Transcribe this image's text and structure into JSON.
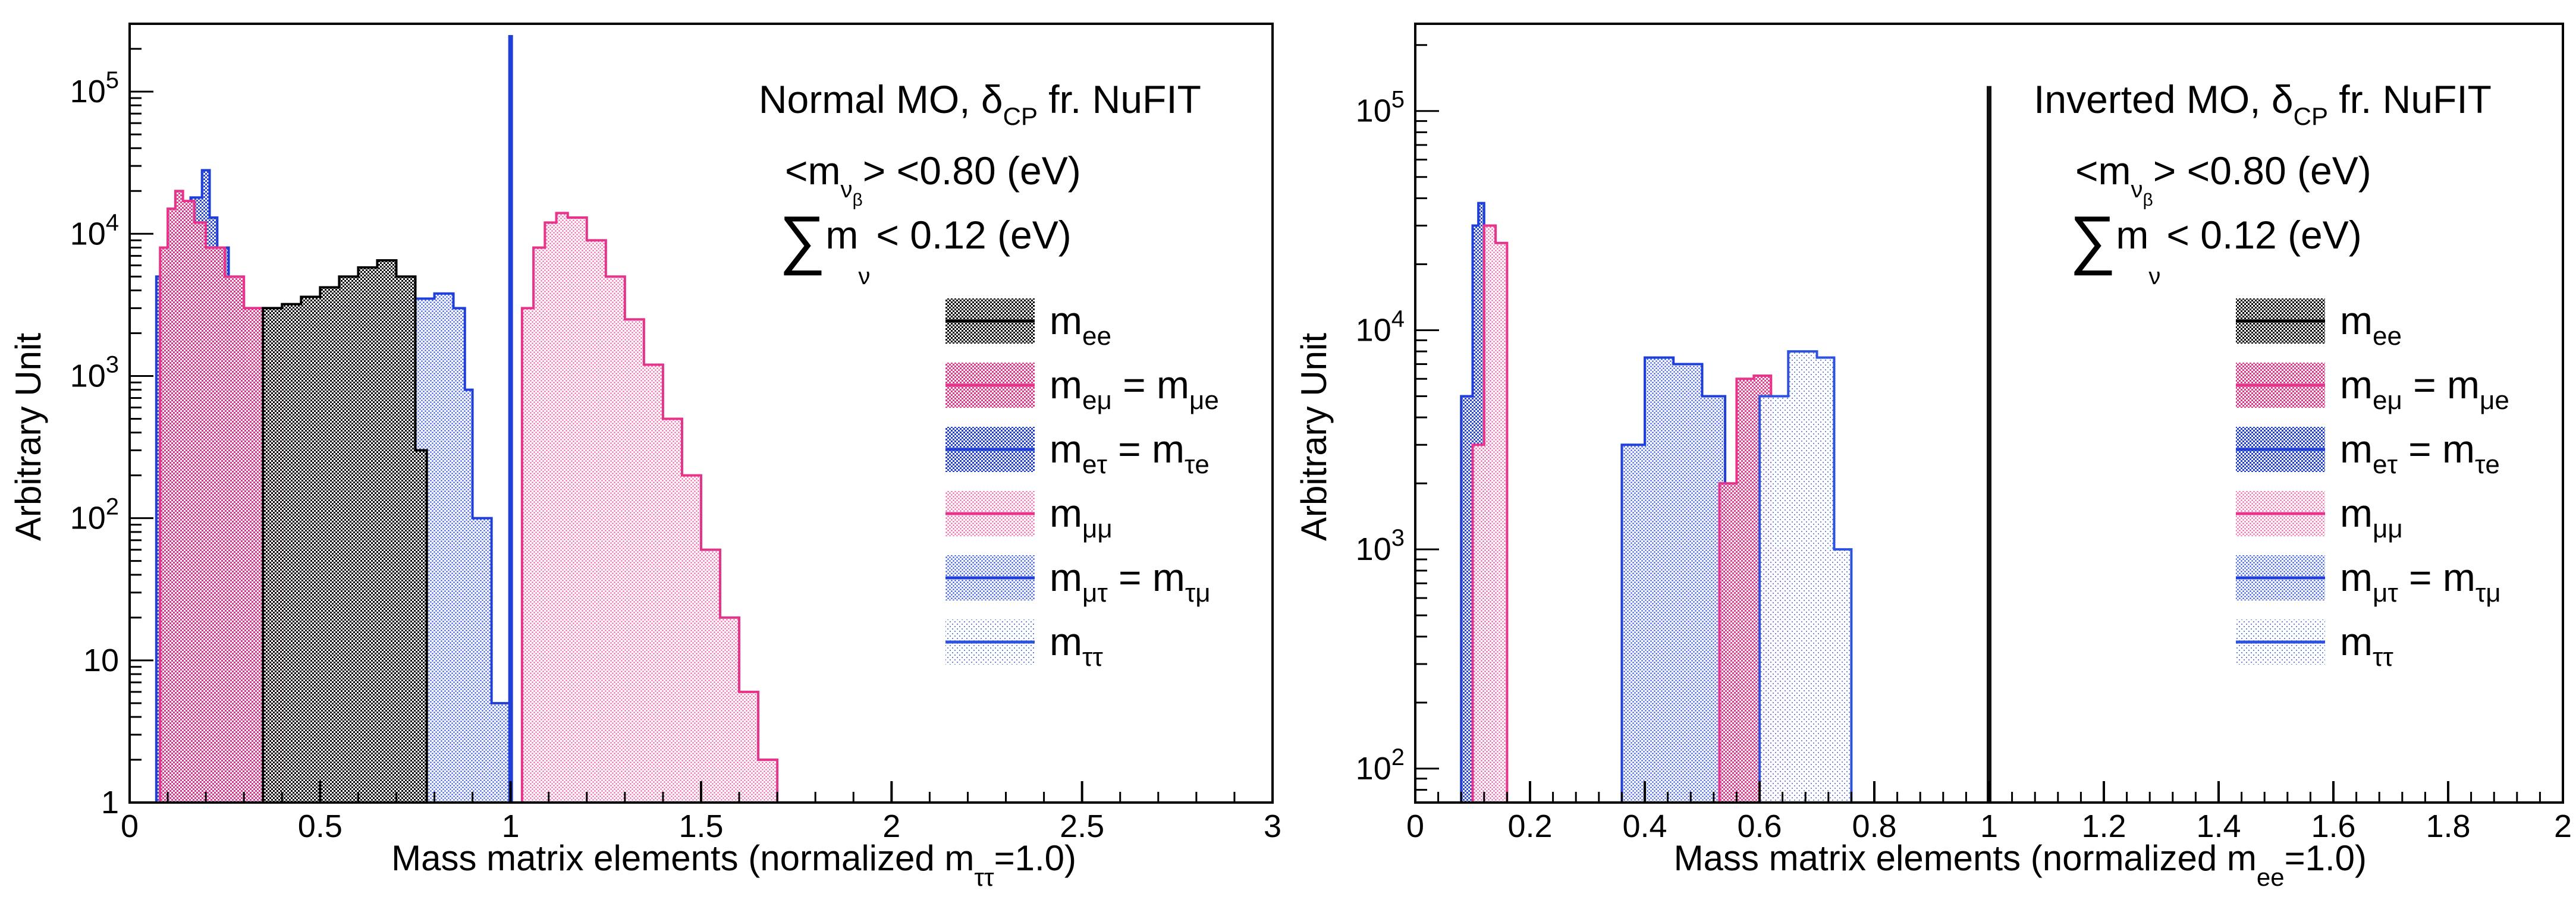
{
  "colors": {
    "mee": "#000000",
    "mem": "#e8338b",
    "met": "#1f3fd8",
    "mmm": "#ef5ea7",
    "mmt": "#2e52e0",
    "mtt": "#5577ee"
  },
  "chart_data": [
    {
      "type": "histogram",
      "panel": "left",
      "title": "Normal MO, δCP fr. NuFIT",
      "xlabel": "Mass matrix elements (normalized mττ=1.0)",
      "ylabel": "Arbitrary Unit",
      "xlim": [
        0,
        3
      ],
      "ylim": [
        1,
        300000
      ],
      "yscale": "log",
      "xticks": [
        "0",
        "0.5",
        "1",
        "1.5",
        "2",
        "2.5",
        "3"
      ],
      "yticks": [
        "1",
        "10",
        "10",
        "10",
        "10",
        "10"
      ],
      "ytick_exps": [
        "",
        "",
        "2",
        "3",
        "4",
        "5"
      ],
      "annotations": {
        "title_main": "Normal MO, δ",
        "title_sub": "CP",
        "title_tail": " fr. NuFIT",
        "cut1_pre": "<m",
        "cut1_sub": "ν",
        "cut1_subsub": "β",
        "cut1_post": "> <0.80 (eV)",
        "cut2_sum": "∑",
        "cut2_m": "m",
        "cut2_sub": "ν",
        "cut2_post": "< 0.12 (eV)"
      },
      "series": [
        {
          "name": "mee",
          "x": [
            0.35,
            0.4,
            0.45,
            0.5,
            0.55,
            0.6,
            0.65,
            0.7,
            0.75,
            0.78
          ],
          "values": [
            3000,
            3200,
            3600,
            4200,
            5000,
            5800,
            6500,
            5000,
            300,
            1
          ]
        },
        {
          "name": "meu",
          "x": [
            0.05,
            0.08,
            0.1,
            0.12,
            0.14,
            0.17,
            0.2,
            0.25,
            0.3,
            0.35,
            0.4
          ],
          "values": [
            1,
            8000,
            15000,
            20000,
            17000,
            12000,
            8000,
            5000,
            3000,
            1500,
            1
          ]
        },
        {
          "name": "met",
          "x": [
            0.05,
            0.07,
            0.1,
            0.13,
            0.16,
            0.19,
            0.21,
            0.23,
            0.26,
            0.3,
            0.33,
            0.36
          ],
          "values": [
            1,
            5000,
            10000,
            15000,
            18000,
            28000,
            13000,
            8000,
            4000,
            1000,
            5,
            1
          ]
        },
        {
          "name": "muu",
          "x": [
            1.0,
            1.03,
            1.06,
            1.09,
            1.12,
            1.15,
            1.2,
            1.25,
            1.3,
            1.35,
            1.4,
            1.45,
            1.5,
            1.55,
            1.6,
            1.65,
            1.7
          ],
          "values": [
            1,
            3000,
            8000,
            12000,
            14000,
            13000,
            9000,
            5000,
            2500,
            1200,
            500,
            200,
            60,
            20,
            6,
            2,
            1
          ]
        },
        {
          "name": "mut",
          "x": [
            0.05,
            0.1,
            0.15,
            0.2,
            0.3,
            0.4,
            0.5,
            0.6,
            0.7,
            0.75,
            0.8,
            0.85,
            0.88,
            0.9,
            0.95,
            1.0
          ],
          "values": [
            1,
            1000,
            2500,
            3000,
            3000,
            3000,
            3100,
            3200,
            3300,
            3500,
            3800,
            3000,
            800,
            100,
            5,
            1
          ]
        },
        {
          "name": "mtt",
          "x": [
            1.0
          ],
          "values": [
            250000
          ]
        }
      ],
      "legend": [
        {
          "key": "mee",
          "m": "m",
          "sub": "ee",
          "eq": "",
          "sub2": ""
        },
        {
          "key": "mem",
          "m": "m",
          "sub": "eμ",
          "eq": " = m",
          "sub2": "μe"
        },
        {
          "key": "met",
          "m": "m",
          "sub": "eτ",
          "eq": " = m",
          "sub2": "τe"
        },
        {
          "key": "mmm",
          "m": "m",
          "sub": "μμ",
          "eq": "",
          "sub2": ""
        },
        {
          "key": "mmt",
          "m": "m",
          "sub": "μτ",
          "eq": " = m",
          "sub2": "τμ"
        },
        {
          "key": "mtt",
          "m": "m",
          "sub": "ττ",
          "eq": "",
          "sub2": ""
        }
      ]
    },
    {
      "type": "histogram",
      "panel": "right",
      "title": "Inverted MO, δCP fr. NuFIT",
      "xlabel": "Mass matrix elements (normalized mee=1.0)",
      "ylabel": "Arbitrary Unit",
      "xlim": [
        0,
        2
      ],
      "ylim": [
        70,
        250000
      ],
      "yscale": "log",
      "xticks": [
        "0",
        "0.2",
        "0.4",
        "0.6",
        "0.8",
        "1",
        "1.2",
        "1.4",
        "1.6",
        "1.8",
        "2"
      ],
      "yticks": [
        "10",
        "10",
        "10",
        "10"
      ],
      "ytick_exps": [
        "2",
        "3",
        "4",
        "5"
      ],
      "annotations": {
        "title_main": "Inverted MO, δ",
        "title_sub": "CP",
        "title_tail": " fr. NuFIT",
        "cut1_pre": "<m",
        "cut1_sub": "ν",
        "cut1_subsub": "β",
        "cut1_post": "> <0.80 (eV)",
        "cut2_sum": "∑",
        "cut2_m": "m",
        "cut2_sub": "ν",
        "cut2_post": "< 0.12 (eV)"
      },
      "series": [
        {
          "name": "mee",
          "x": [
            1.0
          ],
          "values": [
            130000
          ]
        },
        {
          "name": "meu",
          "x": [
            0.5,
            0.53,
            0.56,
            0.59,
            0.62,
            0.65
          ],
          "values": [
            70,
            2000,
            6000,
            6200,
            1000,
            70
          ]
        },
        {
          "name": "met",
          "x": [
            0.06,
            0.08,
            0.1,
            0.11,
            0.12,
            0.13,
            0.14
          ],
          "values": [
            70,
            5000,
            30000,
            38000,
            20000,
            1000,
            70
          ]
        },
        {
          "name": "muu",
          "x": [
            0.08,
            0.1,
            0.12,
            0.14,
            0.16
          ],
          "values": [
            70,
            3000,
            30000,
            25000,
            70
          ]
        },
        {
          "name": "mut",
          "x": [
            0.33,
            0.36,
            0.4,
            0.45,
            0.5,
            0.54,
            0.56
          ],
          "values": [
            70,
            3000,
            7500,
            7000,
            5000,
            300,
            70
          ]
        },
        {
          "name": "mtt",
          "x": [
            0.55,
            0.6,
            0.65,
            0.7,
            0.73,
            0.76
          ],
          "values": [
            70,
            5000,
            8000,
            7500,
            1000,
            70
          ]
        }
      ],
      "legend": [
        {
          "key": "mee",
          "m": "m",
          "sub": "ee",
          "eq": "",
          "sub2": ""
        },
        {
          "key": "mem",
          "m": "m",
          "sub": "eμ",
          "eq": " = m",
          "sub2": "μe"
        },
        {
          "key": "met",
          "m": "m",
          "sub": "eτ",
          "eq": " = m",
          "sub2": "τe"
        },
        {
          "key": "mmm",
          "m": "m",
          "sub": "μμ",
          "eq": "",
          "sub2": ""
        },
        {
          "key": "mmt",
          "m": "m",
          "sub": "μτ",
          "eq": " = m",
          "sub2": "τμ"
        },
        {
          "key": "mtt",
          "m": "m",
          "sub": "ττ",
          "eq": "",
          "sub2": ""
        }
      ]
    }
  ],
  "labels": {
    "left_ylabel": "Arbitrary Unit",
    "right_ylabel": "Arbitrary Unit",
    "left_xlabel_pre": "Mass matrix elements (normalized m",
    "left_xlabel_sub": "ττ",
    "left_xlabel_post": "=1.0)",
    "right_xlabel_pre": "Mass matrix elements (normalized m",
    "right_xlabel_sub": "ee",
    "right_xlabel_post": "=1.0)"
  }
}
